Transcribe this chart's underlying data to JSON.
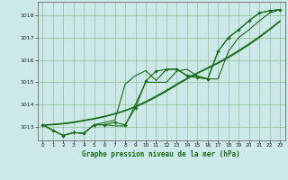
{
  "title": "Graphe pression niveau de la mer (hPa)",
  "bg_color": "#cce8e8",
  "grid_color": "#88bb88",
  "line_color": "#1a6b1a",
  "xlim": [
    -0.5,
    23.5
  ],
  "ylim": [
    1012.4,
    1018.6
  ],
  "yticks": [
    1013,
    1014,
    1015,
    1016,
    1017,
    1018
  ],
  "xticks": [
    0,
    1,
    2,
    3,
    4,
    5,
    6,
    7,
    8,
    9,
    10,
    11,
    12,
    13,
    14,
    15,
    16,
    17,
    18,
    19,
    20,
    21,
    22,
    23
  ],
  "series_marked": [
    1013.1,
    1012.85,
    1012.62,
    1012.75,
    1012.72,
    1013.1,
    1013.1,
    1013.2,
    1013.1,
    1013.85,
    1015.05,
    1015.5,
    1015.58,
    1015.58,
    1015.28,
    1015.2,
    1015.15,
    1016.38,
    1017.0,
    1017.35,
    1017.75,
    1018.1,
    1018.2,
    1018.25
  ],
  "series_high": [
    1013.1,
    1012.85,
    1012.62,
    1012.75,
    1012.72,
    1013.1,
    1013.2,
    1013.3,
    1014.92,
    1015.3,
    1015.52,
    1015.08,
    1015.58,
    1015.6,
    1015.3,
    1015.28,
    1015.15,
    1016.38,
    1017.0,
    1017.35,
    1017.75,
    1018.1,
    1018.2,
    1018.25
  ],
  "series_low": [
    1013.1,
    1012.85,
    1012.62,
    1012.75,
    1012.72,
    1013.1,
    1013.1,
    1013.05,
    1013.05,
    1014.02,
    1015.0,
    1015.0,
    1015.0,
    1015.5,
    1015.58,
    1015.28,
    1015.15,
    1015.15,
    1016.38,
    1017.0,
    1017.35,
    1017.75,
    1018.1,
    1018.25
  ],
  "series_smooth1": [
    1013.08,
    1013.12,
    1013.16,
    1013.22,
    1013.3,
    1013.38,
    1013.48,
    1013.6,
    1013.74,
    1013.92,
    1014.14,
    1014.38,
    1014.64,
    1014.92,
    1015.18,
    1015.42,
    1015.65,
    1015.88,
    1016.14,
    1016.42,
    1016.72,
    1017.04,
    1017.38,
    1017.75
  ],
  "series_smooth2": [
    1013.08,
    1013.1,
    1013.14,
    1013.2,
    1013.28,
    1013.36,
    1013.46,
    1013.58,
    1013.72,
    1013.9,
    1014.1,
    1014.34,
    1014.6,
    1014.88,
    1015.15,
    1015.4,
    1015.62,
    1015.85,
    1016.1,
    1016.38,
    1016.68,
    1017.0,
    1017.35,
    1017.72
  ]
}
